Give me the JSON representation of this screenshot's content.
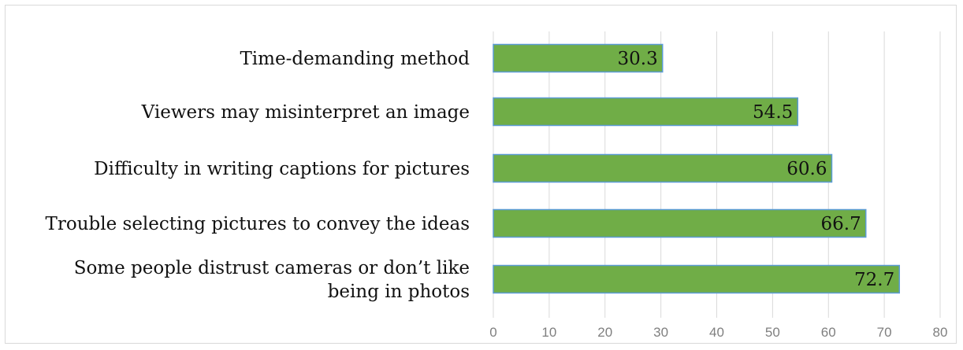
{
  "chart_data": {
    "type": "bar",
    "orientation": "horizontal",
    "categories": [
      [
        "Time-demanding method"
      ],
      [
        "Viewers may misinterpret an image"
      ],
      [
        "Difficulty in writing captions for pictures"
      ],
      [
        "Trouble selecting pictures to convey the ideas"
      ],
      [
        "Some people distrust cameras or don’t like",
        "being in photos"
      ]
    ],
    "values": [
      30.3,
      54.5,
      60.6,
      66.7,
      72.7
    ],
    "value_labels": [
      "30.3",
      "54.5",
      "60.6",
      "66.7",
      "72.7"
    ],
    "xlim": [
      0,
      80
    ],
    "xticks": [
      0,
      10,
      20,
      30,
      40,
      50,
      60,
      70,
      80
    ],
    "xtick_labels": [
      "0",
      "10",
      "20",
      "30",
      "40",
      "50",
      "60",
      "70",
      "80"
    ],
    "grid": "vertical",
    "legend": "none",
    "bar_color": "#70ad47",
    "bar_edge_color": "#5b9bd5"
  }
}
